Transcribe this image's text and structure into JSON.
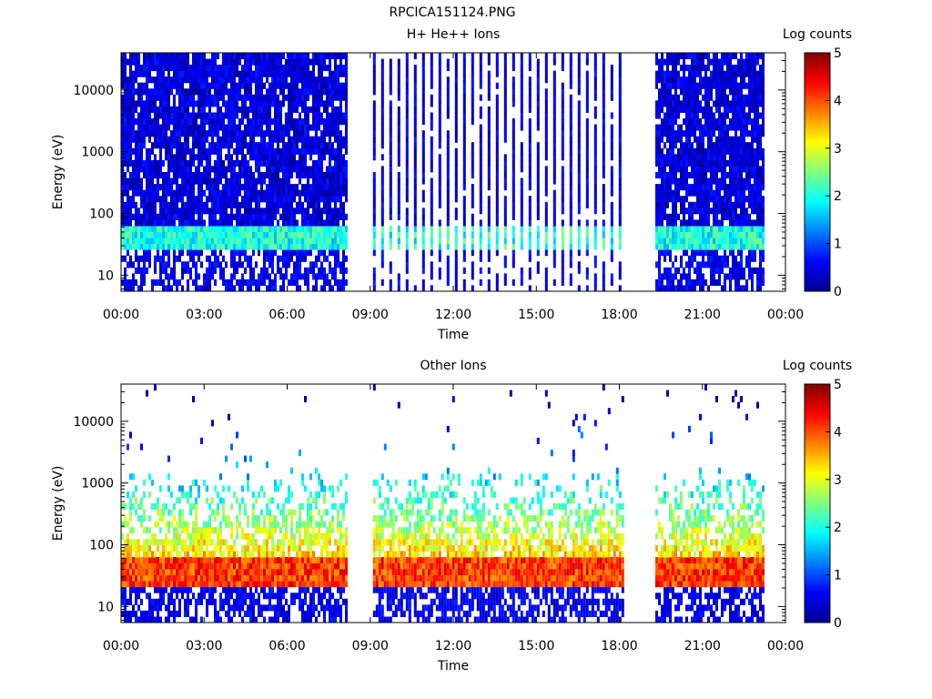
{
  "page": {
    "title": "RPCICA151124.PNG"
  },
  "chart_data": [
    {
      "type": "heatmap",
      "title": "H+ He++ Ions",
      "xlabel": "Time",
      "ylabel": "Energy (eV)",
      "x_ticks": [
        "00:00",
        "03:00",
        "06:00",
        "09:00",
        "12:00",
        "15:00",
        "18:00",
        "21:00",
        "00:00"
      ],
      "xlim_hours": [
        0,
        24
      ],
      "y_ticks": [
        {
          "value": 10,
          "label": "10"
        },
        {
          "value": 100,
          "label": "100"
        },
        {
          "value": 1000,
          "label": "1000"
        },
        {
          "value": 10000,
          "label": "10000"
        }
      ],
      "ylim": [
        5.5,
        40000
      ],
      "yscale": "log",
      "colorbar": {
        "label": "Log counts",
        "range": [
          0,
          5
        ],
        "ticks": [
          "0",
          "1",
          "2",
          "3",
          "4",
          "5"
        ]
      },
      "data_intervals_hours": [
        [
          0,
          8.15
        ],
        [
          9.1,
          18.15
        ],
        [
          19.3,
          23.2
        ]
      ],
      "band": {
        "energy_eV": [
          25,
          60
        ],
        "log_counts": 2.0
      },
      "background_log_counts": 0.3
    },
    {
      "type": "heatmap",
      "title": "Other Ions",
      "xlabel": "Time",
      "ylabel": "Energy (eV)",
      "x_ticks": [
        "00:00",
        "03:00",
        "06:00",
        "09:00",
        "12:00",
        "15:00",
        "18:00",
        "21:00",
        "00:00"
      ],
      "xlim_hours": [
        0,
        24
      ],
      "y_ticks": [
        {
          "value": 10,
          "label": "10"
        },
        {
          "value": 100,
          "label": "100"
        },
        {
          "value": 1000,
          "label": "1000"
        },
        {
          "value": 10000,
          "label": "10000"
        }
      ],
      "ylim": [
        5.5,
        40000
      ],
      "yscale": "log",
      "colorbar": {
        "label": "Log counts",
        "range": [
          0,
          5
        ],
        "ticks": [
          "0",
          "1",
          "2",
          "3",
          "4",
          "5"
        ]
      },
      "data_intervals_hours": [
        [
          0,
          8.15
        ],
        [
          9.1,
          18.15
        ],
        [
          19.3,
          23.2
        ]
      ],
      "band": {
        "energy_eV": [
          22,
          60
        ],
        "log_counts": 4.1
      },
      "background_log_counts": 0.3
    }
  ]
}
